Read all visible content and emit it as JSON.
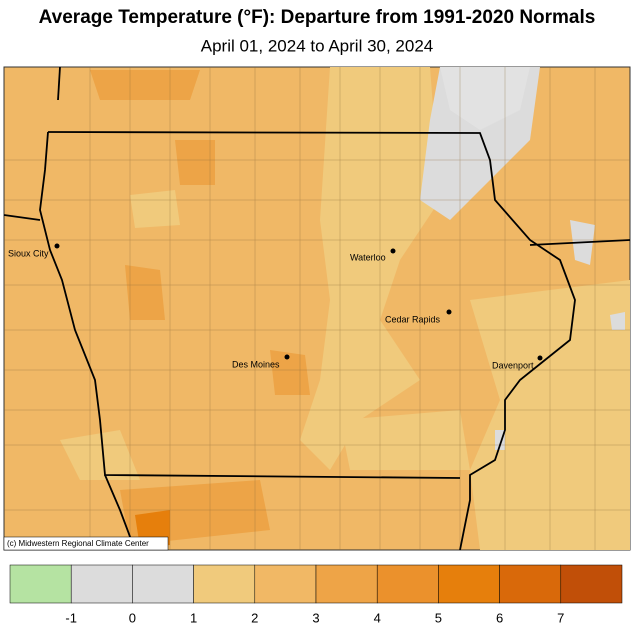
{
  "header": {
    "title": "Average Temperature (°F): Departure from 1991-2020 Normals",
    "subtitle": "April 01, 2024 to April 30, 2024"
  },
  "map": {
    "cities": [
      "Sioux City",
      "Waterloo",
      "Cedar Rapids",
      "Des Moines",
      "Davenport"
    ],
    "credit": "(c) Midwestern Regional Climate Center"
  },
  "legend": {
    "colors": [
      "#b5e3a2",
      "#dcdcdc",
      "#dcdcdc",
      "#f0ca7c",
      "#f1b865",
      "#eea447",
      "#eb912c",
      "#e67f0c",
      "#d9690a",
      "#c14f08"
    ],
    "ticks": [
      -1,
      0,
      1,
      2,
      3,
      4,
      5,
      6,
      7
    ]
  }
}
